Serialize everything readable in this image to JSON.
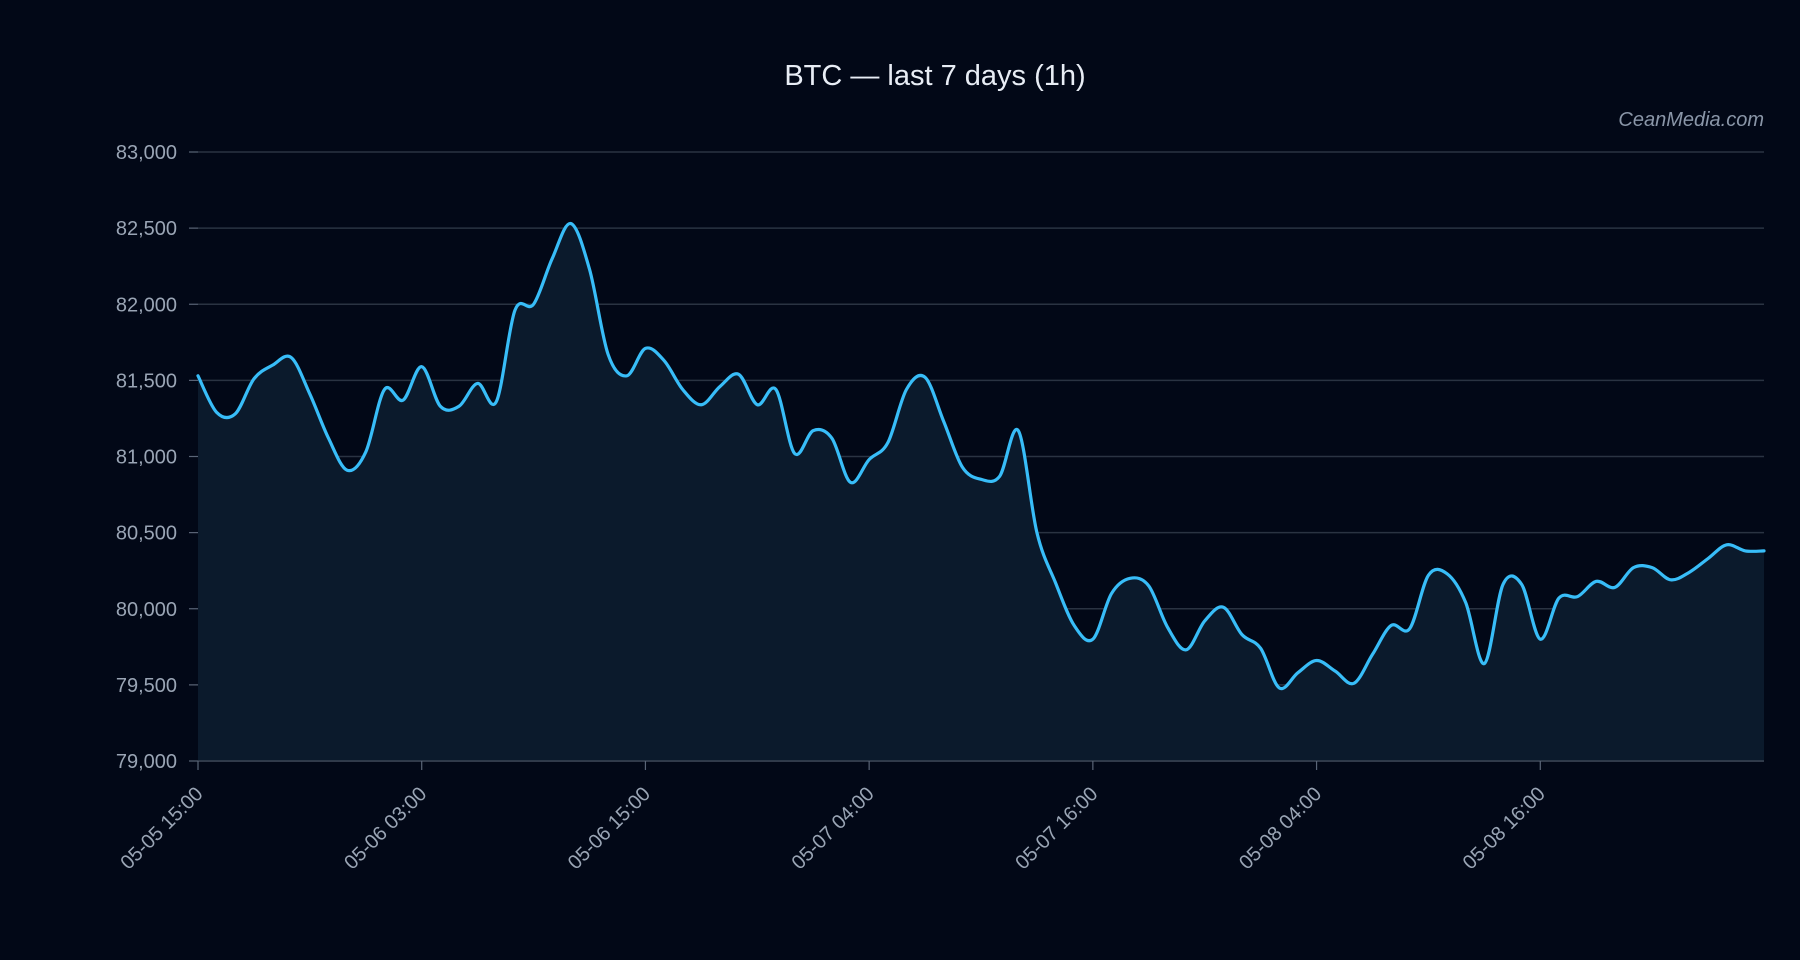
{
  "chart_data": {
    "type": "area",
    "title": "BTC — last 7 days (1h)",
    "watermark": "CeanMedia.com",
    "xlabel": "",
    "ylabel": "",
    "ylim": [
      79000,
      83000
    ],
    "y_ticks": [
      79000,
      79500,
      80000,
      80500,
      81000,
      81500,
      82000,
      82500,
      83000
    ],
    "y_tick_labels": [
      "79,000",
      "79,500",
      "80,000",
      "80,500",
      "81,000",
      "81,500",
      "82,000",
      "82,500",
      "83,000"
    ],
    "x_ticks": [
      "05-05 15:00",
      "05-06 03:00",
      "05-06 15:00",
      "05-07 04:00",
      "05-07 16:00",
      "05-08 04:00",
      "05-08 16:00"
    ],
    "x_tick_index": [
      0,
      12,
      24,
      36,
      48,
      60,
      72
    ],
    "grid": true,
    "colors": {
      "line": "#38bdf8",
      "fill": "#0b1a2c",
      "background": "#020817",
      "grid": "#2a3342"
    },
    "series": [
      {
        "values": [
          81530,
          81290,
          81280,
          81510,
          81600,
          81650,
          81410,
          81120,
          80910,
          81030,
          81440,
          81370,
          81590,
          81330,
          81330,
          81480,
          81360,
          81960,
          82000,
          82300,
          82530,
          82230,
          81670,
          81530,
          81710,
          81630,
          81440,
          81340,
          81460,
          81540,
          81340,
          81440,
          81020,
          81170,
          81120,
          80830,
          80980,
          81090,
          81440,
          81520,
          81230,
          80930,
          80850,
          80870,
          81170,
          80500,
          80170,
          79890,
          79800,
          80100,
          80200,
          80150,
          79880,
          79730,
          79920,
          80010,
          79830,
          79740,
          79480,
          79580,
          79660,
          79590,
          79510,
          79700,
          79890,
          79870,
          80220,
          80230,
          80040,
          79640,
          80160,
          80160,
          79800,
          80070,
          80080,
          80180,
          80140,
          80270,
          80270,
          80190,
          80240,
          80330,
          80420,
          80380,
          80380
        ]
      }
    ]
  }
}
